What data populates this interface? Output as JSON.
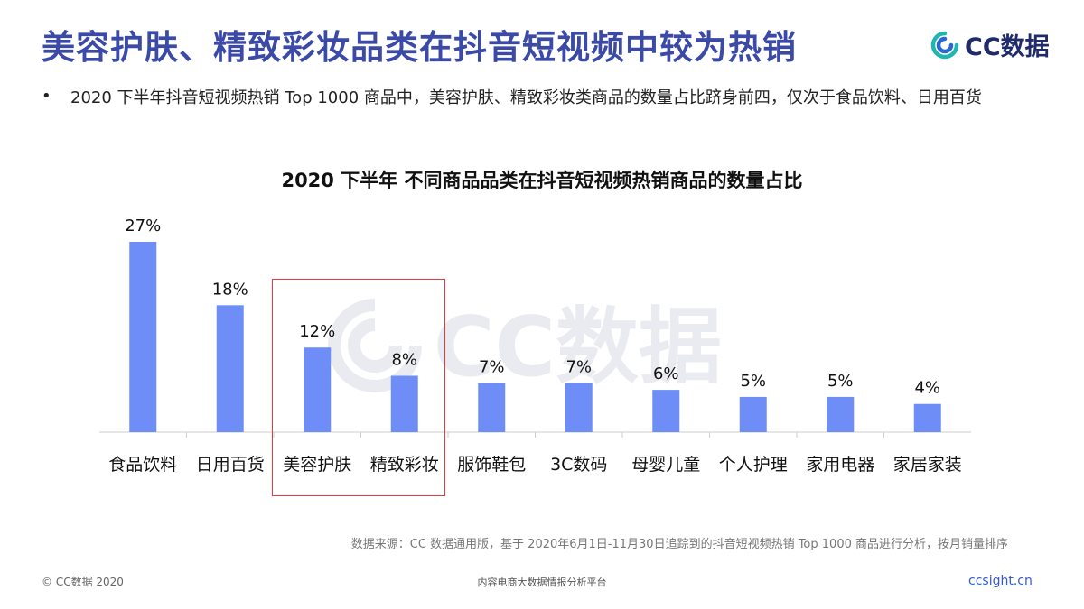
{
  "header": {
    "title": "美容护肤、精致彩妆品类在抖音短视频中较为热销",
    "logo_text": "CC数据"
  },
  "bullet": {
    "text": "2020 下半年抖音短视频热销 Top 1000 商品中，美容护肤、精致彩妆类商品的数量占比跻身前四，仅次于食品饮料、日用百货"
  },
  "colors": {
    "title": "#3b4aa6",
    "bar": "#6e8df7",
    "highlight": "#e03c3c",
    "logo_accent": "#1fb5b0"
  },
  "chart_data": {
    "type": "bar",
    "title": "2020 下半年 不同商品品类在抖音短视频热销商品的数量占比",
    "categories": [
      "食品饮料",
      "日用百货",
      "美容护肤",
      "精致彩妆",
      "服饰鞋包",
      "3C数码",
      "母婴儿童",
      "个人护理",
      "家用电器",
      "家居家装"
    ],
    "values": [
      27,
      18,
      12,
      8,
      7,
      7,
      6,
      5,
      5,
      4
    ],
    "value_labels": [
      "27%",
      "18%",
      "12%",
      "8%",
      "7%",
      "7%",
      "6%",
      "5%",
      "5%",
      "4%"
    ],
    "unit": "%",
    "ylim": [
      0,
      27
    ],
    "grid": false,
    "highlighted_categories": [
      "美容护肤",
      "精致彩妆"
    ]
  },
  "watermark": {
    "text": "CC数据"
  },
  "footer": {
    "source": "数据来源：CC 数据通用版，基于 2020年6月1日-11月30日追踪到的抖音短视频热销 Top 1000 商品进行分析，按月销量排序",
    "copyright": "© CC数据 2020",
    "platform": "内容电商大数据情报分析平台",
    "site": "ccsight.cn"
  }
}
